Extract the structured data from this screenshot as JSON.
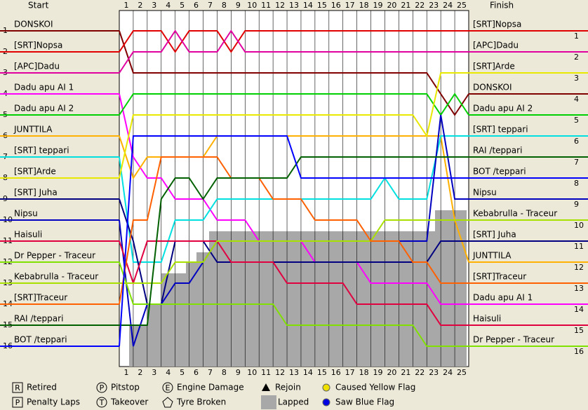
{
  "chart_data": {
    "type": "line",
    "start_label": "Start",
    "finish_label": "Finish",
    "laps": [
      1,
      2,
      3,
      4,
      5,
      6,
      7,
      8,
      9,
      10,
      11,
      12,
      13,
      14,
      15,
      16,
      17,
      18,
      19,
      20,
      21,
      22,
      23,
      24,
      25
    ],
    "positions": [
      1,
      2,
      3,
      4,
      5,
      6,
      7,
      8,
      9,
      10,
      11,
      12,
      13,
      14,
      15,
      16
    ],
    "finish_names": [
      "[SRT]Nopsa",
      "[APC]Dadu",
      "[SRT]Arde",
      "DONSKOI",
      "Dadu apu AI 2",
      "[SRT] teppari",
      "RAI /teppari",
      "BOT /teppari",
      "Nipsu",
      "Kebabrulla - Traceur",
      "[SRT] Juha",
      "JUNTTILA",
      "[SRT]Traceur",
      "Dadu apu AI 1",
      "Haisuli",
      "Dr Pepper - Traceur"
    ],
    "ylim": [
      1,
      16
    ],
    "series": [
      {
        "name": "DONSKOI",
        "color": "#800000",
        "values": [
          1,
          3,
          3,
          3,
          3,
          3,
          3,
          3,
          3,
          3,
          3,
          3,
          3,
          3,
          3,
          3,
          3,
          3,
          3,
          3,
          3,
          3,
          3,
          4,
          5,
          4
        ]
      },
      {
        "name": "[SRT]Nopsa",
        "color": "#e00000",
        "values": [
          2,
          1,
          1,
          1,
          2,
          1,
          1,
          1,
          2,
          1,
          1,
          1,
          1,
          1,
          1,
          1,
          1,
          1,
          1,
          1,
          1,
          1,
          1,
          1,
          1,
          1
        ]
      },
      {
        "name": "[APC]Dadu",
        "color": "#e000a0",
        "values": [
          3,
          2,
          2,
          2,
          1,
          2,
          2,
          2,
          1,
          2,
          2,
          2,
          2,
          2,
          2,
          2,
          2,
          2,
          2,
          2,
          2,
          2,
          2,
          2,
          2,
          2
        ]
      },
      {
        "name": "Dadu apu AI 1",
        "color": "#ff00ff",
        "values": [
          4,
          7,
          8,
          8,
          9,
          9,
          9,
          10,
          10,
          10,
          11,
          11,
          11,
          11,
          12,
          12,
          12,
          12,
          13,
          13,
          13,
          13,
          13,
          14,
          14,
          14
        ]
      },
      {
        "name": "Dadu apu AI 2",
        "color": "#00d000",
        "values": [
          5,
          4,
          4,
          4,
          4,
          4,
          4,
          4,
          4,
          4,
          4,
          4,
          4,
          4,
          4,
          4,
          4,
          4,
          4,
          4,
          4,
          4,
          4,
          5,
          4,
          5
        ]
      },
      {
        "name": "JUNTTILA",
        "color": "#ffb000",
        "values": [
          6,
          8,
          7,
          7,
          7,
          7,
          7,
          6,
          6,
          6,
          6,
          6,
          6,
          6,
          6,
          6,
          6,
          6,
          6,
          6,
          6,
          6,
          6,
          6,
          10,
          12
        ]
      },
      {
        "name": "[SRT] teppari",
        "color": "#00e0e0",
        "values": [
          7,
          12,
          12,
          12,
          10,
          10,
          10,
          9,
          9,
          9,
          9,
          9,
          9,
          9,
          9,
          9,
          9,
          9,
          9,
          8,
          9,
          9,
          9,
          6,
          6,
          6
        ]
      },
      {
        "name": "[SRT]Arde",
        "color": "#e8e800",
        "values": [
          8,
          5,
          5,
          5,
          5,
          5,
          5,
          5,
          5,
          5,
          5,
          5,
          5,
          5,
          5,
          5,
          5,
          5,
          5,
          5,
          5,
          5,
          6,
          3,
          3,
          3
        ]
      },
      {
        "name": "[SRT] Juha",
        "color": "#000080",
        "values": [
          9,
          11,
          14,
          14,
          11,
          11,
          11,
          12,
          12,
          12,
          12,
          12,
          12,
          12,
          12,
          12,
          12,
          12,
          12,
          12,
          12,
          12,
          12,
          11,
          11,
          11
        ]
      },
      {
        "name": "Nipsu",
        "color": "#0000c0",
        "values": [
          10,
          16,
          14,
          14,
          13,
          13,
          12,
          11,
          11,
          11,
          11,
          11,
          11,
          11,
          11,
          11,
          11,
          11,
          11,
          11,
          11,
          11,
          11,
          5,
          9,
          9
        ]
      },
      {
        "name": "Haisuli",
        "color": "#e00040",
        "values": [
          11,
          13,
          11,
          11,
          11,
          11,
          11,
          11,
          12,
          12,
          12,
          12,
          13,
          13,
          13,
          13,
          13,
          14,
          14,
          14,
          14,
          14,
          14,
          15,
          15,
          15
        ]
      },
      {
        "name": "Dr Pepper - Traceur",
        "color": "#80e000",
        "values": [
          12,
          14,
          14,
          14,
          14,
          14,
          14,
          14,
          14,
          14,
          14,
          14,
          15,
          15,
          15,
          15,
          15,
          15,
          15,
          15,
          15,
          15,
          16,
          16,
          16,
          16
        ]
      },
      {
        "name": "Kebabrulla - Traceur",
        "color": "#a8e000",
        "values": [
          13,
          13,
          13,
          13,
          12,
          12,
          12,
          11,
          11,
          11,
          11,
          11,
          11,
          11,
          11,
          11,
          11,
          11,
          11,
          10,
          10,
          10,
          10,
          10,
          10,
          10
        ]
      },
      {
        "name": "[SRT]Traceur",
        "color": "#ff6000",
        "values": [
          14,
          10,
          10,
          7,
          7,
          7,
          7,
          7,
          8,
          8,
          8,
          9,
          9,
          9,
          10,
          10,
          10,
          10,
          11,
          11,
          11,
          12,
          12,
          13,
          13,
          13
        ]
      },
      {
        "name": "RAI /teppari",
        "color": "#006000",
        "values": [
          15,
          15,
          15,
          9,
          8,
          8,
          9,
          8,
          8,
          8,
          8,
          8,
          8,
          7,
          7,
          7,
          7,
          7,
          7,
          7,
          7,
          7,
          7,
          7,
          7,
          7
        ]
      },
      {
        "name": "BOT /teppari",
        "color": "#0000ff",
        "values": [
          16,
          6,
          6,
          6,
          6,
          6,
          6,
          6,
          6,
          6,
          6,
          6,
          6,
          8,
          8,
          8,
          8,
          8,
          8,
          8,
          8,
          8,
          8,
          8,
          8,
          8
        ]
      }
    ],
    "legend": [
      {
        "symbol": "R",
        "label": "Retired"
      },
      {
        "symbol": "P",
        "label": "Penalty Laps"
      },
      {
        "symbol": "P",
        "label": "Pitstop"
      },
      {
        "symbol": "T",
        "label": "Takeover"
      },
      {
        "symbol": "E",
        "label": "Engine Damage"
      },
      {
        "label": "Tyre Broken"
      },
      {
        "label": "Rejoin"
      },
      {
        "label": "Lapped"
      },
      {
        "label": "Caused Yellow Flag"
      },
      {
        "label": "Saw Blue Flag"
      }
    ]
  }
}
